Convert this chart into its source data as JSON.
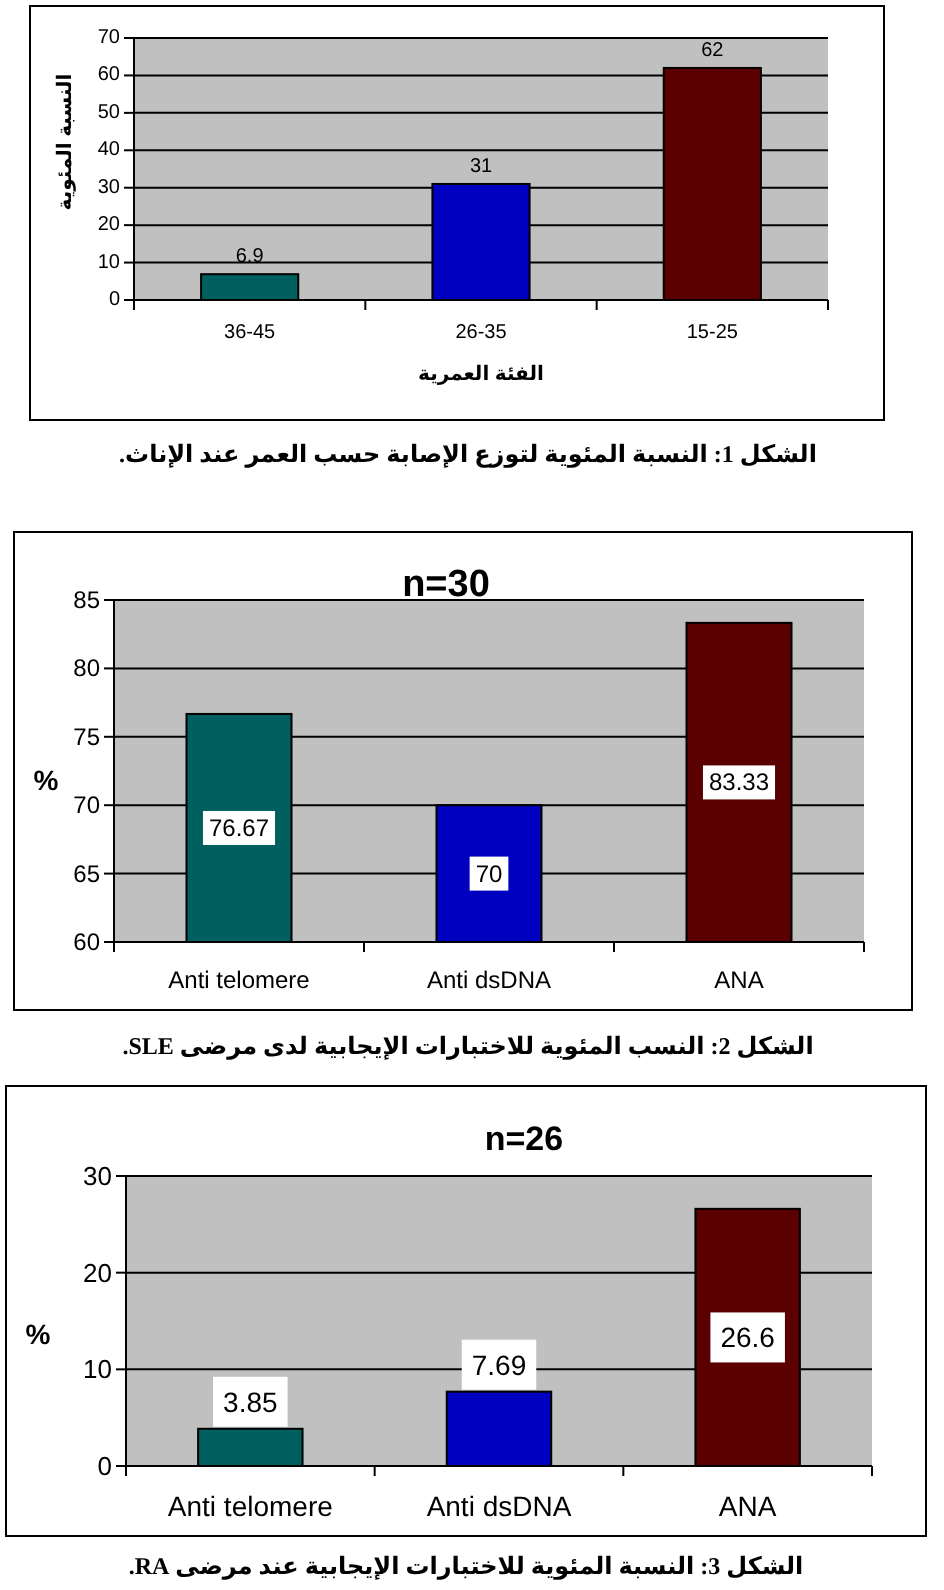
{
  "chart_data": [
    {
      "type": "bar",
      "ylabel": "النسبة المئوية",
      "xlabel": "الفئة العمرية",
      "categories": [
        "36-45",
        "26-35",
        "15-25"
      ],
      "values": [
        6.9,
        31,
        62
      ],
      "colors": [
        "#006060",
        "#0000c0",
        "#5a0000"
      ],
      "ylim": [
        0,
        70
      ],
      "yticks": [
        0,
        10,
        20,
        30,
        40,
        50,
        60,
        70
      ],
      "grid": "y",
      "data_labels": true,
      "annotations": [
        "الشكل 1: النسبة المئوية لتوزع الإصابة حسب العمر عند الإناث."
      ]
    },
    {
      "type": "bar",
      "title": "n=30",
      "ylabel": "%",
      "categories": [
        "Anti telomere",
        "Anti dsDNA",
        "ANA"
      ],
      "values": [
        76.67,
        70,
        83.33
      ],
      "colors": [
        "#006060",
        "#0000c0",
        "#5a0000"
      ],
      "ylim": [
        60,
        85
      ],
      "yticks": [
        60,
        65,
        70,
        75,
        80,
        85
      ],
      "grid": "y",
      "data_labels": true,
      "annotations": [
        "الشكل 2: النسب المئوية للاختبارات الإيجابية لدى مرضى SLE."
      ]
    },
    {
      "type": "bar",
      "title": "n=26",
      "ylabel": "%",
      "categories": [
        "Anti telomere",
        "Anti dsDNA",
        "ANA"
      ],
      "values": [
        3.85,
        7.69,
        26.6
      ],
      "colors": [
        "#006060",
        "#0000c0",
        "#5a0000"
      ],
      "ylim": [
        0,
        30
      ],
      "yticks": [
        0,
        10,
        20,
        30
      ],
      "grid": "y",
      "data_labels": true,
      "annotations": [
        "الشكل 3: النسبة المئوية للاختبارات الإيجابية عند مرضى RA."
      ]
    }
  ]
}
